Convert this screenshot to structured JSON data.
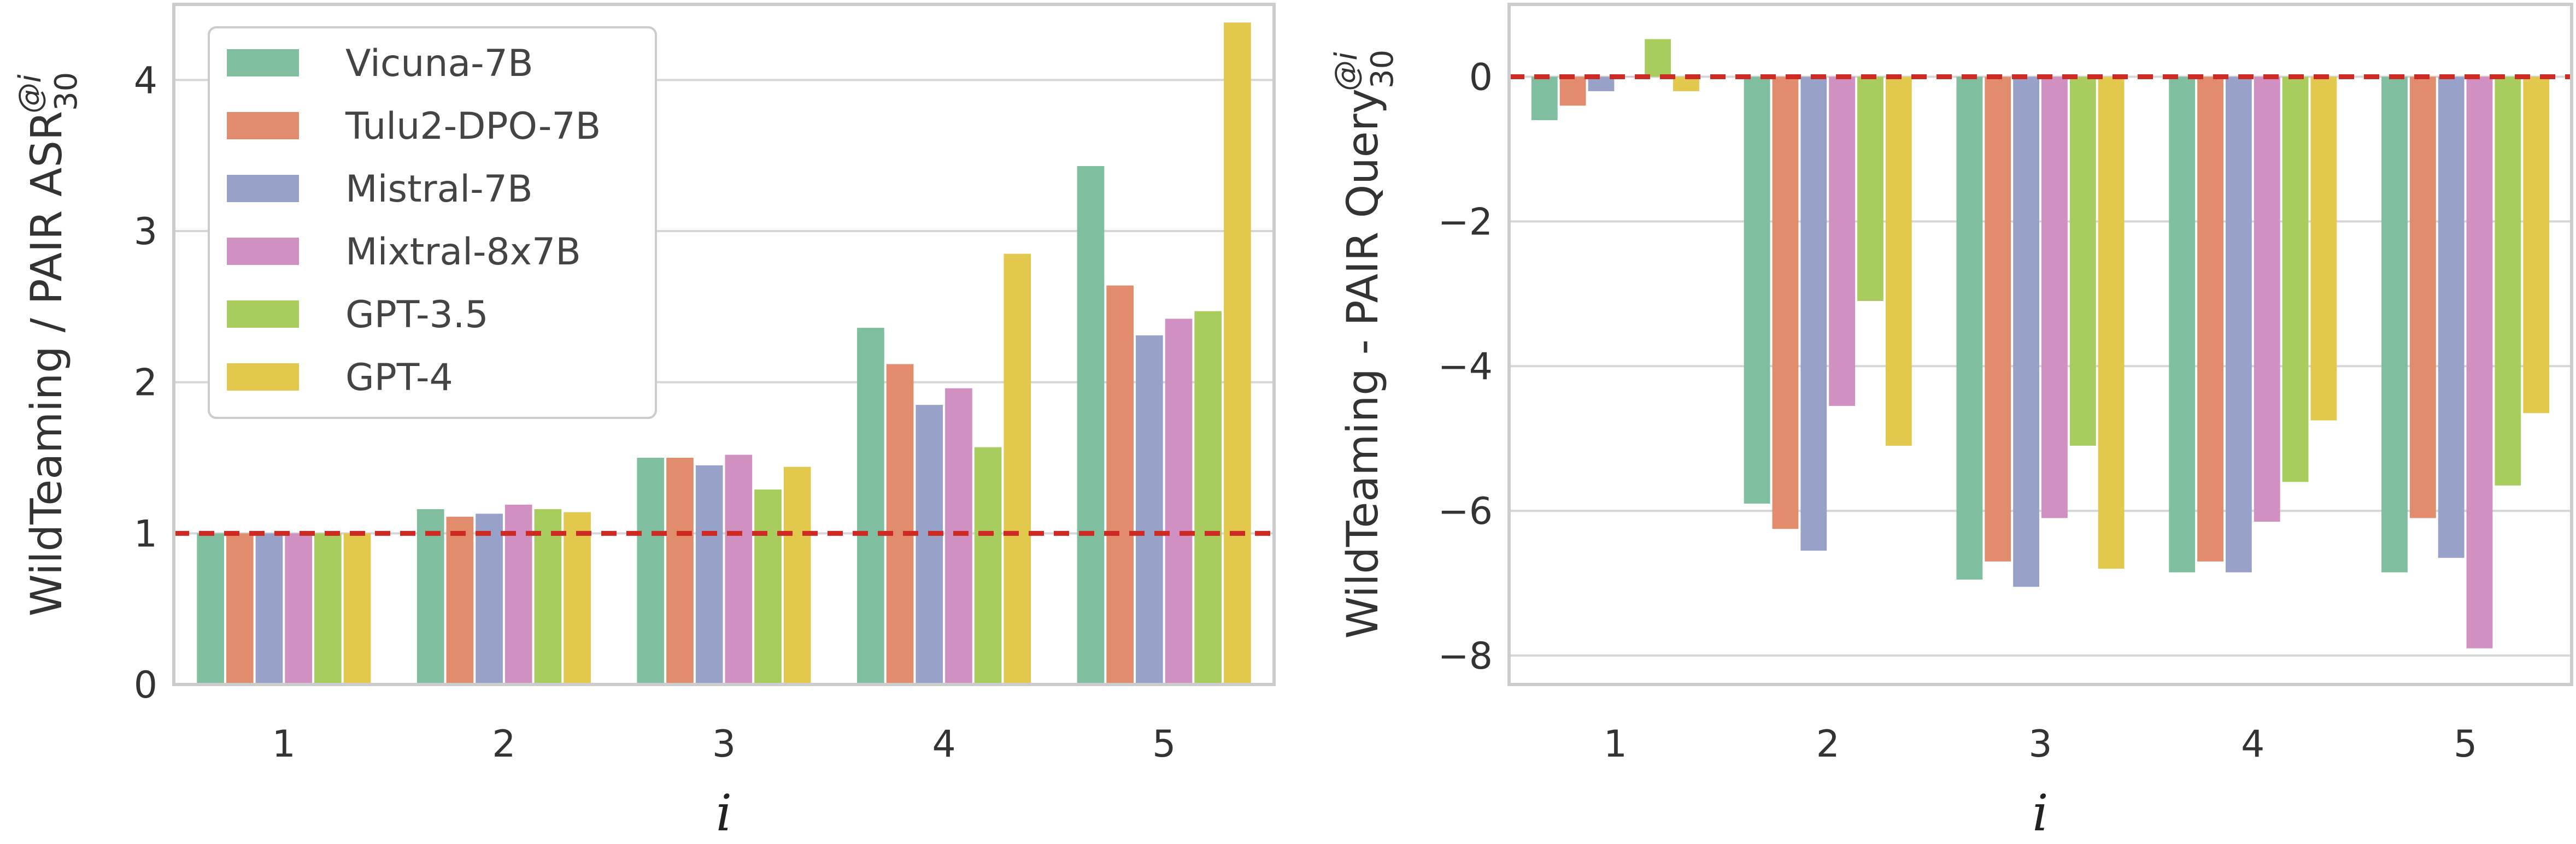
{
  "chart_data": [
    {
      "type": "bar",
      "panel": "left",
      "categories": [
        "1",
        "2",
        "3",
        "4",
        "5"
      ],
      "xlabel": "i",
      "ylabel_main": "WildTeaming / PAIR ASR",
      "ylabel_sub": "30",
      "ylabel_sup": "@i",
      "ylim": [
        0,
        4.5
      ],
      "yticks": [
        "0",
        "1",
        "2",
        "3",
        "4"
      ],
      "ytick_values": [
        0,
        1,
        2,
        3,
        4
      ],
      "reference_line": 1.0,
      "grid": true,
      "legend_position": "top-left",
      "series": [
        {
          "name": "Vicuna-7B",
          "values": [
            1.0,
            1.16,
            1.5,
            2.36,
            3.43
          ]
        },
        {
          "name": "Tulu2-DPO-7B",
          "values": [
            1.0,
            1.11,
            1.5,
            2.12,
            2.64
          ]
        },
        {
          "name": "Mistral-7B",
          "values": [
            1.0,
            1.13,
            1.45,
            1.85,
            2.31
          ]
        },
        {
          "name": "Mixtral-8x7B",
          "values": [
            1.0,
            1.19,
            1.52,
            1.96,
            2.42
          ]
        },
        {
          "name": "GPT-3.5",
          "values": [
            1.0,
            1.16,
            1.29,
            1.57,
            2.47
          ]
        },
        {
          "name": "GPT-4",
          "values": [
            1.0,
            1.14,
            1.44,
            2.85,
            4.38
          ]
        }
      ]
    },
    {
      "type": "bar",
      "panel": "right",
      "categories": [
        "1",
        "2",
        "3",
        "4",
        "5"
      ],
      "xlabel": "i",
      "ylabel_main": "WildTeaming - PAIR Query",
      "ylabel_sub": "30",
      "ylabel_sup": "@i",
      "ylim": [
        -8.4,
        1.0
      ],
      "yticks": [
        "0",
        "−2",
        "−4",
        "−6",
        "−8"
      ],
      "ytick_values": [
        0,
        -2,
        -4,
        -6,
        -8
      ],
      "reference_line": 0.0,
      "grid": true,
      "series": [
        {
          "name": "Vicuna-7B",
          "values": [
            -0.6,
            -5.9,
            -6.95,
            -6.85,
            -6.85
          ]
        },
        {
          "name": "Tulu2-DPO-7B",
          "values": [
            -0.4,
            -6.25,
            -6.7,
            -6.7,
            -6.1
          ]
        },
        {
          "name": "Mistral-7B",
          "values": [
            -0.2,
            -6.55,
            -7.05,
            -6.85,
            -6.65
          ]
        },
        {
          "name": "Mixtral-8x7B",
          "values": [
            0.0,
            -4.55,
            -6.1,
            -6.15,
            -7.9
          ]
        },
        {
          "name": "GPT-3.5",
          "values": [
            0.52,
            -3.1,
            -5.1,
            -5.6,
            -5.65
          ]
        },
        {
          "name": "GPT-4",
          "values": [
            -0.2,
            -5.1,
            -6.8,
            -4.75,
            -4.65
          ]
        }
      ]
    }
  ],
  "colors": {
    "series": [
      "#7fbf9f",
      "#e28c6e",
      "#98a2c8",
      "#d190c2",
      "#a9cc5e",
      "#e2c84c"
    ],
    "reference": "#cc2a22",
    "axes": "#cccccc",
    "grid": "#d6d6d6"
  }
}
